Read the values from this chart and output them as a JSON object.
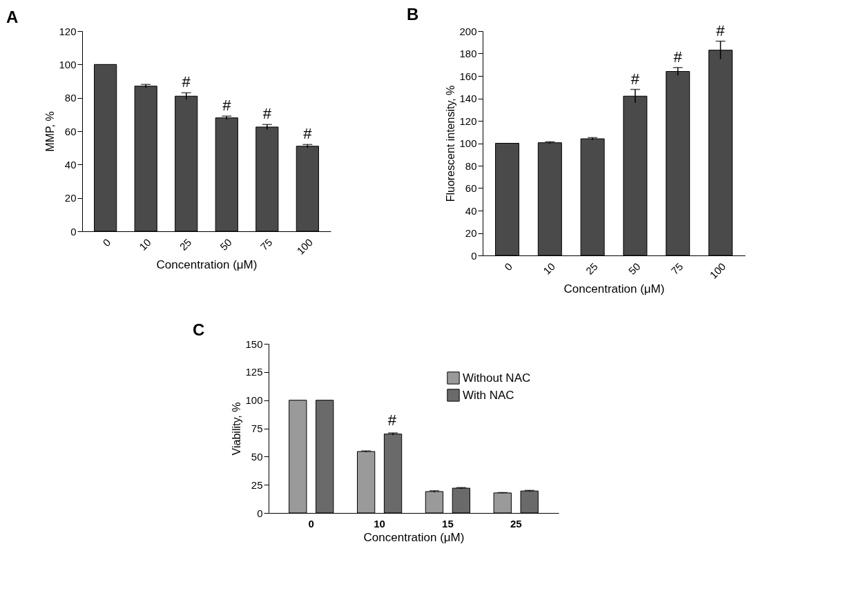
{
  "chart_data": [
    {
      "type": "bar",
      "title": "A",
      "xlabel": "Concentration (μM)",
      "ylabel": "MMP, %",
      "categories": [
        "0",
        "10",
        "25",
        "50",
        "75",
        "100"
      ],
      "values": [
        100,
        87,
        81,
        68,
        62.5,
        51
      ],
      "errors": [
        null,
        1,
        2,
        1,
        1.5,
        1
      ],
      "color": "#4a4a4a",
      "ylim": [
        0,
        120
      ],
      "yticks": [
        0,
        20,
        40,
        60,
        80,
        100,
        120
      ],
      "annotations": [
        {
          "text": "#",
          "x": "25",
          "y": 83
        },
        {
          "text": "#",
          "x": "50",
          "y": 69
        },
        {
          "text": "#",
          "x": "75",
          "y": 64
        },
        {
          "text": "#",
          "x": "100",
          "y": 52
        }
      ]
    },
    {
      "type": "bar",
      "title": "B",
      "xlabel": "Concentration (μM)",
      "ylabel": "Fluorescent intensity, %",
      "categories": [
        "0",
        "10",
        "25",
        "50",
        "75",
        "100"
      ],
      "values": [
        100,
        100.5,
        104,
        142,
        164,
        183
      ],
      "errors": [
        null,
        0.8,
        1,
        6,
        3.5,
        8
      ],
      "color": "#4a4a4a",
      "ylim": [
        0,
        200
      ],
      "yticks": [
        0,
        20,
        40,
        60,
        80,
        100,
        120,
        140,
        160,
        180,
        200
      ],
      "annotations": [
        {
          "text": "#",
          "x": "50",
          "y": 148
        },
        {
          "text": "#",
          "x": "75",
          "y": 167.5
        },
        {
          "text": "#",
          "x": "100",
          "y": 191
        }
      ]
    },
    {
      "type": "bar",
      "title": "C",
      "xlabel": "Concentration (μM)",
      "ylabel": "Viability, %",
      "categories": [
        "0",
        "10",
        "15",
        "25"
      ],
      "ylim": [
        0,
        150
      ],
      "yticks": [
        0,
        25,
        50,
        75,
        100,
        125,
        150
      ],
      "legend": "top right",
      "series": [
        {
          "name": "Without NAC",
          "color": "#9a9a9a",
          "values": [
            100,
            54.5,
            19,
            17.8
          ],
          "errors": [
            null,
            0.5,
            0.7,
            0.3
          ]
        },
        {
          "name": "With NAC",
          "color": "#6a6a6a",
          "values": [
            100,
            70,
            22,
            19.5
          ],
          "errors": [
            null,
            1,
            0.5,
            0.5
          ]
        }
      ],
      "annotations": [
        "#"
      ]
    }
  ]
}
